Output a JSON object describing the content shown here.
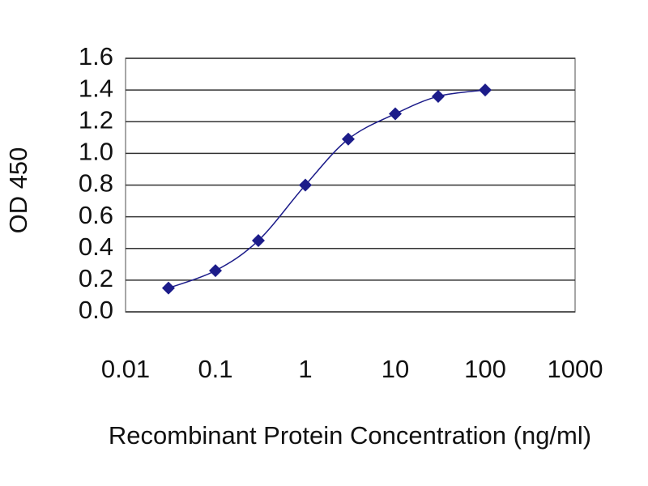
{
  "chart_data": {
    "type": "line",
    "x_label": "Recombinant Protein Concentration (ng/ml)",
    "y_label": "OD 450",
    "x": [
      0.03,
      0.1,
      0.3,
      1,
      3,
      10,
      30,
      100
    ],
    "series": [
      {
        "color": "#1c1c8a",
        "values": [
          0.15,
          0.26,
          0.45,
          0.8,
          1.09,
          1.25,
          1.36,
          1.4
        ]
      }
    ],
    "xscale": "log",
    "xlim": [
      0.01,
      1000
    ],
    "xticks": [
      0.01,
      0.1,
      1,
      10,
      100,
      1000
    ],
    "ylim": [
      0,
      1.6
    ],
    "yticks": [
      {
        "value": 0,
        "label": "0.0"
      },
      0.2,
      0.4,
      0.6,
      0.8,
      {
        "value": 1,
        "label": "1.0"
      },
      1.2,
      1.4,
      1.6
    ],
    "grid": true
  }
}
